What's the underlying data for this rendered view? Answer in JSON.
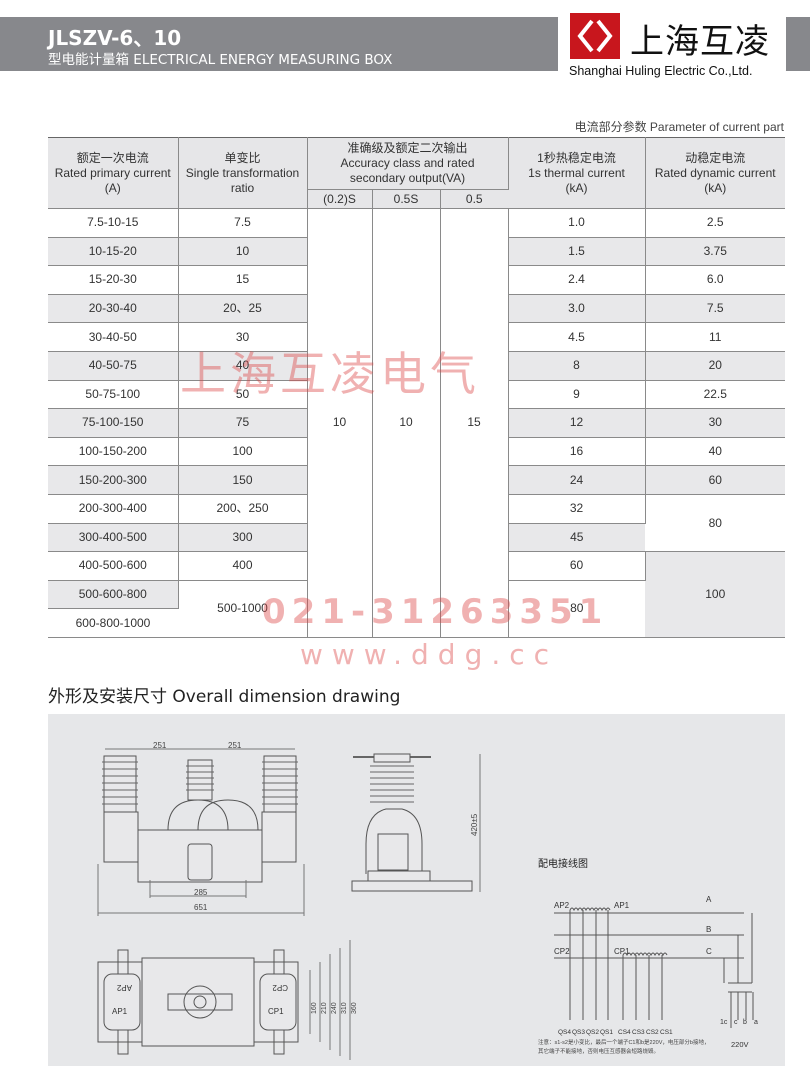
{
  "header": {
    "title": "JLSZV-6、10",
    "subtitle": "型电能计量箱 ELECTRICAL ENERGY MEASURING BOX",
    "logo_cn": "上海互凌",
    "logo_en": "Shanghai Huling Electric Co.,Ltd.",
    "accent": "#c8161d",
    "band_color": "#87888c"
  },
  "table_caption": "电流部分参数 Parameter of current part",
  "table": {
    "headers": {
      "primary_cn": "额定一次电流",
      "primary_en": "Rated primary current",
      "primary_unit": "(A)",
      "ratio_cn": "单变比",
      "ratio_en": "Single transformation",
      "ratio_en2": "ratio",
      "acc_cn": "准确级及额定二次输出",
      "acc_en": "Accuracy class and rated",
      "acc_en2": "secondary output(VA)",
      "acc_sub": [
        "(0.2)S",
        "0.5S",
        "0.5"
      ],
      "thermal_cn": "1秒热稳定电流",
      "thermal_en": "1s thermal current",
      "thermal_unit": "(kA)",
      "dynamic_cn": "动稳定电流",
      "dynamic_en": "Rated dynamic current",
      "dynamic_unit": "(kA)"
    },
    "primary": [
      "7.5-10-15",
      "10-15-20",
      "15-20-30",
      "20-30-40",
      "30-40-50",
      "40-50-75",
      "50-75-100",
      "75-100-150",
      "100-150-200",
      "150-200-300",
      "200-300-400",
      "300-400-500",
      "400-500-600",
      "500-600-800",
      "600-800-1000"
    ],
    "ratio": [
      "7.5",
      "10",
      "15",
      "20、25",
      "30",
      "40",
      "50",
      "75",
      "100",
      "150",
      "200、250",
      "300",
      "400",
      "500-1000"
    ],
    "accuracy": [
      "10",
      "10",
      "15"
    ],
    "thermal": [
      "1.0",
      "1.5",
      "2.4",
      "3.0",
      "4.5",
      "8",
      "9",
      "12",
      "16",
      "24",
      "32",
      "45",
      "60",
      "80"
    ],
    "dynamic": [
      "2.5",
      "3.75",
      "6.0",
      "7.5",
      "11",
      "20",
      "22.5",
      "30",
      "40",
      "60",
      "80",
      "100"
    ]
  },
  "watermark": {
    "company": "上海互凌电气",
    "phone": "021-31263351",
    "site": "www.ddg.cc"
  },
  "section_title": "外形及安装尺寸  Overall dimension drawing",
  "drawing": {
    "dims": [
      "251",
      "251",
      "285",
      "651",
      "420±5",
      "160",
      "210",
      "240",
      "310",
      "360"
    ],
    "labels": [
      "AP2",
      "AP1",
      "CP2",
      "CP1"
    ],
    "wiring_title": "配电接线图",
    "phases": [
      "A",
      "B",
      "C"
    ],
    "wiring_labels": [
      "AP2",
      "AP1",
      "CP2",
      "CP1"
    ],
    "terminals_a": [
      "QS4",
      "QS3",
      "QS2",
      "QS1"
    ],
    "terminals_c": [
      "CS4",
      "CS3",
      "CS2",
      "CS1"
    ],
    "pt_terminals": [
      "1c",
      "c",
      "b",
      "a"
    ],
    "voltage": "220V",
    "note1": "注意：s1-s2是小变比，最后一个端子C1和b是220V，电压部分b接地，",
    "note2": "其它端子不能接地，否则电压互感器会短路烧毁。"
  }
}
